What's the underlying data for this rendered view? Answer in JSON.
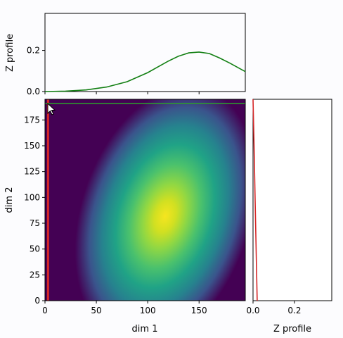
{
  "chart_data": [
    {
      "type": "heatmap",
      "panel": "main",
      "xlabel": "dim 1",
      "ylabel": "dim 2",
      "xlim": [
        0,
        195
      ],
      "ylim": [
        0,
        195
      ],
      "xticks": [
        0,
        50,
        100,
        150
      ],
      "yticks": [
        0,
        25,
        50,
        75,
        100,
        125,
        150,
        175
      ],
      "colormap": "viridis",
      "peak": {
        "x": 120,
        "y": 85
      },
      "cursor_lines": {
        "vertical_x": 3,
        "vertical_color": "#d62728",
        "horizontal_y": 191,
        "horizontal_color": "#2ca02c"
      }
    },
    {
      "type": "line",
      "panel": "top",
      "ylabel": "Z profile",
      "xlim": [
        0,
        195
      ],
      "ylim": [
        0,
        0.38
      ],
      "yticks": [
        0.0,
        0.2
      ],
      "ytick_labels": [
        "0.0",
        "0.2"
      ],
      "color": "#127f12",
      "x": [
        0,
        20,
        40,
        60,
        80,
        100,
        110,
        120,
        130,
        140,
        150,
        160,
        170,
        180,
        195
      ],
      "values": [
        0.0,
        0.002,
        0.008,
        0.022,
        0.048,
        0.092,
        0.12,
        0.148,
        0.172,
        0.188,
        0.192,
        0.185,
        0.163,
        0.138,
        0.097
      ]
    },
    {
      "type": "line",
      "panel": "right",
      "xlabel": "Z profile",
      "xlim": [
        0,
        0.38
      ],
      "ylim": [
        0,
        195
      ],
      "xticks": [
        0.0,
        0.2
      ],
      "xtick_labels": [
        "0.0",
        "0.2"
      ],
      "color": "#d62728",
      "x": [
        0.0,
        0.005,
        0.01,
        0.015,
        0.02
      ],
      "y": [
        195,
        150,
        100,
        50,
        0
      ]
    }
  ]
}
